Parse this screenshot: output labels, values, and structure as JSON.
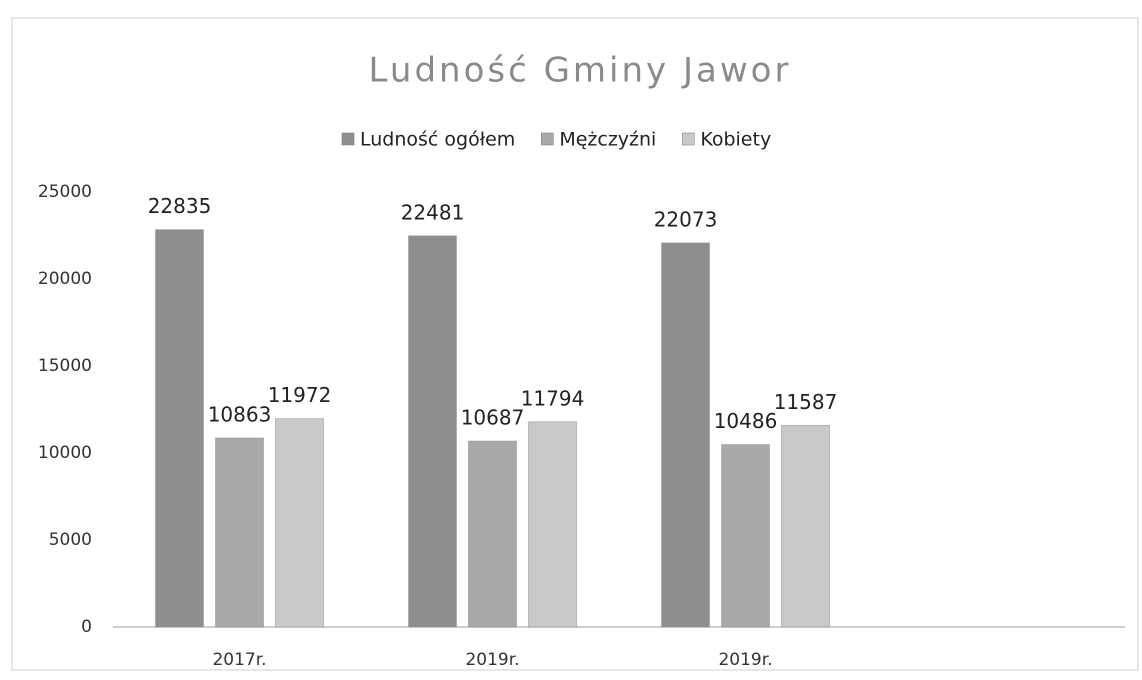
{
  "chart_data": {
    "type": "bar",
    "title": "Ludność Gminy Jawor",
    "categories": [
      "2017r.",
      "2019r.",
      "2019r.",
      null
    ],
    "series": [
      {
        "name": "Ludność ogółem",
        "color": "#8e8e8e",
        "values": [
          22835,
          22481,
          22073,
          null
        ]
      },
      {
        "name": "Mężczyźni",
        "color": "#a8a8a8",
        "values": [
          10863,
          10687,
          10486,
          null
        ]
      },
      {
        "name": "Kobiety",
        "color": "#c9c9c9",
        "values": [
          11972,
          11794,
          11587,
          null
        ]
      }
    ],
    "ylim": [
      0,
      25000
    ],
    "yticks": [
      0,
      5000,
      10000,
      15000,
      20000,
      25000
    ],
    "grid": false,
    "legend": "top"
  }
}
